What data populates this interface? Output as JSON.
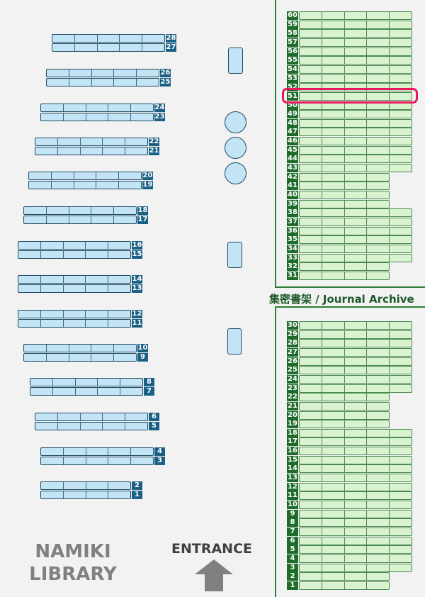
{
  "colors": {
    "stack_shelf": "#c2e4f5",
    "stack_label": "#1a5f85",
    "archive_shelf": "#d9f2d0",
    "archive_label": "#1e6b2a",
    "highlight": "#e8175d"
  },
  "stacks": [
    {
      "top": "28",
      "bottom": "27",
      "cells": 5
    },
    {
      "top": "26",
      "bottom": "25",
      "cells": 5
    },
    {
      "top": "24",
      "bottom": "23",
      "cells": 5
    },
    {
      "top": "22",
      "bottom": "21",
      "cells": 5
    },
    {
      "top": "20",
      "bottom": "19",
      "cells": 5
    },
    {
      "top": "18",
      "bottom": "17",
      "cells": 5
    },
    {
      "top": "16",
      "bottom": "15",
      "cells": 5
    },
    {
      "top": "14",
      "bottom": "13",
      "cells": 5
    },
    {
      "top": "12",
      "bottom": "11",
      "cells": 5
    },
    {
      "top": "10",
      "bottom": "9",
      "cells": 5
    },
    {
      "top": "8",
      "bottom": "7",
      "cells": 5
    },
    {
      "top": "6",
      "bottom": "5",
      "cells": 5
    },
    {
      "top": "4",
      "bottom": "3",
      "cells": 5
    },
    {
      "top": "2",
      "bottom": "1",
      "cells": 4
    }
  ],
  "archive_upper": [
    {
      "top": "60",
      "bottom": "59",
      "cells": 5
    },
    {
      "top": "58",
      "bottom": "57",
      "cells": 5
    },
    {
      "top": "56",
      "bottom": "55",
      "cells": 5
    },
    {
      "top": "54",
      "bottom": "53",
      "cells": 5
    },
    {
      "top": "52",
      "bottom": "51",
      "cells": 5
    },
    {
      "top": "50",
      "bottom": "49",
      "cells": 5
    },
    {
      "top": "48",
      "bottom": "47",
      "cells": 5
    },
    {
      "top": "46",
      "bottom": "45",
      "cells": 5
    },
    {
      "top": "44",
      "bottom": "43",
      "cells": 5
    },
    {
      "top": "42",
      "bottom": "41",
      "cells": 4
    },
    {
      "top": "40",
      "bottom": "39",
      "cells": 4
    },
    {
      "top": "38",
      "bottom": "37",
      "cells": 5
    },
    {
      "top": "36",
      "bottom": "35",
      "cells": 5
    },
    {
      "top": "34",
      "bottom": "33",
      "cells": 5
    },
    {
      "top": "32",
      "bottom": "31",
      "cells": 4
    }
  ],
  "archive_lower": [
    {
      "top": "30",
      "bottom": "29",
      "cells": 5
    },
    {
      "top": "28",
      "bottom": "27",
      "cells": 5
    },
    {
      "top": "26",
      "bottom": "25",
      "cells": 5
    },
    {
      "top": "24",
      "bottom": "23",
      "cells": 5
    },
    {
      "top": "22",
      "bottom": "21",
      "cells": 4
    },
    {
      "top": "20",
      "bottom": "19",
      "cells": 4
    },
    {
      "top": "18",
      "bottom": "17",
      "cells": 5
    },
    {
      "top": "16",
      "bottom": "15",
      "cells": 5
    },
    {
      "top": "14",
      "bottom": "13",
      "cells": 5
    },
    {
      "top": "12",
      "bottom": "11",
      "cells": 5
    },
    {
      "top": "10",
      "bottom": "9",
      "cells": 5
    },
    {
      "top": "8",
      "bottom": "7",
      "cells": 5
    },
    {
      "top": "6",
      "bottom": "5",
      "cells": 5
    },
    {
      "top": "4",
      "bottom": "3",
      "cells": 5
    },
    {
      "top": "2",
      "bottom": "1",
      "cells": 4
    }
  ],
  "highlighted_shelf": "51",
  "archive_title": "集密書架 / Journal Archive",
  "library_name_line1": "NAMIKI",
  "library_name_line2": "LIBRARY",
  "entrance_label": "ENTRANCE",
  "entrance_icon": "arrow-up-icon"
}
